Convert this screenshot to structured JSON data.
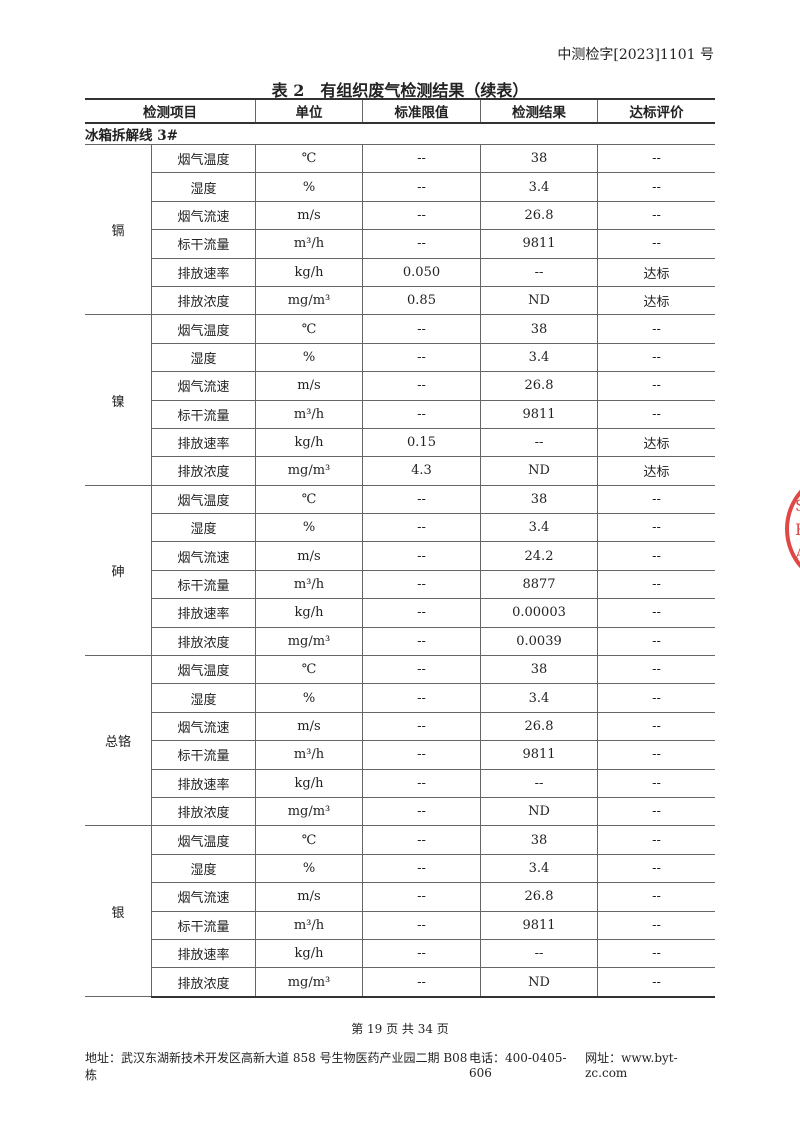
{
  "doc_number": "中测检字[2023]1101 号",
  "title": "表 2　有组织废气检测结果（续表）",
  "headers": [
    "检测项目",
    "单位",
    "标准限值",
    "检测结果",
    "达标评价"
  ],
  "section": "冰箱拆解线 3#",
  "groups": [
    {
      "name": "镉",
      "rows": [
        [
          "烟气温度",
          "℃",
          "--",
          "38",
          "--"
        ],
        [
          "湿度",
          "%",
          "--",
          "3.4",
          "--"
        ],
        [
          "烟气流速",
          "m/s",
          "--",
          "26.8",
          "--"
        ],
        [
          "标干流量",
          "m³/h",
          "--",
          "9811",
          "--"
        ],
        [
          "排放速率",
          "kg/h",
          "0.050",
          "--",
          "达标"
        ],
        [
          "排放浓度",
          "mg/m³",
          "0.85",
          "ND",
          "达标"
        ]
      ]
    },
    {
      "name": "镍",
      "rows": [
        [
          "烟气温度",
          "℃",
          "--",
          "38",
          "--"
        ],
        [
          "湿度",
          "%",
          "--",
          "3.4",
          "--"
        ],
        [
          "烟气流速",
          "m/s",
          "--",
          "26.8",
          "--"
        ],
        [
          "标干流量",
          "m³/h",
          "--",
          "9811",
          "--"
        ],
        [
          "排放速率",
          "kg/h",
          "0.15",
          "--",
          "达标"
        ],
        [
          "排放浓度",
          "mg/m³",
          "4.3",
          "ND",
          "达标"
        ]
      ]
    },
    {
      "name": "砷",
      "rows": [
        [
          "烟气温度",
          "℃",
          "--",
          "38",
          "--"
        ],
        [
          "湿度",
          "%",
          "--",
          "3.4",
          "--"
        ],
        [
          "烟气流速",
          "m/s",
          "--",
          "24.2",
          "--"
        ],
        [
          "标干流量",
          "m³/h",
          "--",
          "8877",
          "--"
        ],
        [
          "排放速率",
          "kg/h",
          "--",
          "0.00003",
          "--"
        ],
        [
          "排放浓度",
          "mg/m³",
          "--",
          "0.0039",
          "--"
        ]
      ]
    },
    {
      "name": "总铬",
      "rows": [
        [
          "烟气温度",
          "℃",
          "--",
          "38",
          "--"
        ],
        [
          "湿度",
          "%",
          "--",
          "3.4",
          "--"
        ],
        [
          "烟气流速",
          "m/s",
          "--",
          "26.8",
          "--"
        ],
        [
          "标干流量",
          "m³/h",
          "--",
          "9811",
          "--"
        ],
        [
          "排放速率",
          "kg/h",
          "--",
          "--",
          "--"
        ],
        [
          "排放浓度",
          "mg/m³",
          "--",
          "ND",
          "--"
        ]
      ]
    },
    {
      "name": "银",
      "rows": [
        [
          "烟气温度",
          "℃",
          "--",
          "38",
          "--"
        ],
        [
          "湿度",
          "%",
          "--",
          "3.4",
          "--"
        ],
        [
          "烟气流速",
          "m/s",
          "--",
          "26.8",
          "--"
        ],
        [
          "标干流量",
          "m³/h",
          "--",
          "9811",
          "--"
        ],
        [
          "排放速率",
          "kg/h",
          "--",
          "--",
          "--"
        ],
        [
          "排放浓度",
          "mg/m³",
          "--",
          "ND",
          "--"
        ]
      ]
    }
  ],
  "page_number": "第 19 页 共 34 页",
  "footer": {
    "address": "地址：武汉东湖新技术开发区高新大道 858 号生物医药产业园二期 B08 栋",
    "phone": "电话：400-0405-606",
    "website": "网址：www.byt-zc.com"
  },
  "stamp_text": "S\nR\nA",
  "stamp_color": "#e04848"
}
